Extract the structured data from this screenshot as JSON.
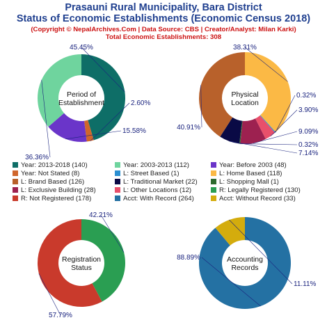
{
  "header": {
    "title_line1": "Prasauni Rural Municipality, Bara District",
    "title_line2": "Status of Economic Establishments (Economic Census 2018)",
    "credit": "(Copyright © NepalArchives.Com | Data Source: CBS | Creator/Analyst: Milan Karki)",
    "total": "Total Economic Establishments: 308"
  },
  "chart_data": [
    {
      "type": "pie",
      "center_label": [
        "Period of",
        "Establishment"
      ],
      "slices": [
        {
          "label": "Year: 2013-2018",
          "value": 140,
          "pct": "45.45%",
          "color": "#0e6e67"
        },
        {
          "label": "Year: Not Stated",
          "value": 8,
          "pct": "2.60%",
          "color": "#d0662c"
        },
        {
          "label": "Year: Before 2003",
          "value": 48,
          "pct": "15.58%",
          "color": "#6a35c9"
        },
        {
          "label": "Year: 2003-2013",
          "value": 112,
          "pct": "36.36%",
          "color": "#6fd49e"
        }
      ]
    },
    {
      "type": "pie",
      "center_label": [
        "Physical",
        "Location"
      ],
      "slices": [
        {
          "label": "L: Home Based",
          "value": 118,
          "pct": "38.31%",
          "color": "#fbb945"
        },
        {
          "label": "L: Street Based",
          "value": 1,
          "pct": "0.32%",
          "color": "#2a8fd1"
        },
        {
          "label": "L: Other Locations",
          "value": 12,
          "pct": "3.90%",
          "color": "#e8506b"
        },
        {
          "label": "L: Exclusive Building",
          "value": 28,
          "pct": "9.09%",
          "color": "#9d2150"
        },
        {
          "label": "L: Shopping Mall",
          "value": 1,
          "pct": "0.32%",
          "color": "#2e6b2e"
        },
        {
          "label": "L: Traditional Market",
          "value": 22,
          "pct": "7.14%",
          "color": "#0a0a45"
        },
        {
          "label": "L: Brand Based",
          "value": 126,
          "pct": "40.91%",
          "color": "#b8612b"
        }
      ]
    },
    {
      "type": "pie",
      "center_label": [
        "Registration",
        "Status"
      ],
      "slices": [
        {
          "label": "R: Legally Registered",
          "value": 130,
          "pct": "42.21%",
          "color": "#2a9e52"
        },
        {
          "label": "R: Not Registered",
          "value": 178,
          "pct": "57.79%",
          "color": "#c93a2c"
        }
      ]
    },
    {
      "type": "pie",
      "center_label": [
        "Accounting",
        "Records"
      ],
      "slices": [
        {
          "label": "Acct: With Record",
          "value": 264,
          "pct": "88.89%",
          "color": "#2471a3"
        },
        {
          "label": "Acct: Without Record",
          "value": 33,
          "pct": "11.11%",
          "color": "#d4ac0d"
        }
      ]
    }
  ],
  "legend": [
    {
      "text": "Year: 2013-2018 (140)",
      "color": "#0e6e67"
    },
    {
      "text": "Year: 2003-2013 (112)",
      "color": "#6fd49e"
    },
    {
      "text": "Year: Before 2003 (48)",
      "color": "#6a35c9"
    },
    {
      "text": "Year: Not Stated (8)",
      "color": "#d0662c"
    },
    {
      "text": "L: Street Based (1)",
      "color": "#2a8fd1"
    },
    {
      "text": "L: Home Based (118)",
      "color": "#fbb945"
    },
    {
      "text": "L: Brand Based (126)",
      "color": "#b8612b"
    },
    {
      "text": "L: Traditional Market (22)",
      "color": "#0a0a45"
    },
    {
      "text": "L: Shopping Mall (1)",
      "color": "#2e6b2e"
    },
    {
      "text": "L: Exclusive Building (28)",
      "color": "#9d2150"
    },
    {
      "text": "L: Other Locations (12)",
      "color": "#e8506b"
    },
    {
      "text": "R: Legally Registered (130)",
      "color": "#2a9e52"
    },
    {
      "text": "R: Not Registered (178)",
      "color": "#c93a2c"
    },
    {
      "text": "Acct: With Record (264)",
      "color": "#2471a3"
    },
    {
      "text": "Acct: Without Record (33)",
      "color": "#d4ac0d"
    }
  ]
}
